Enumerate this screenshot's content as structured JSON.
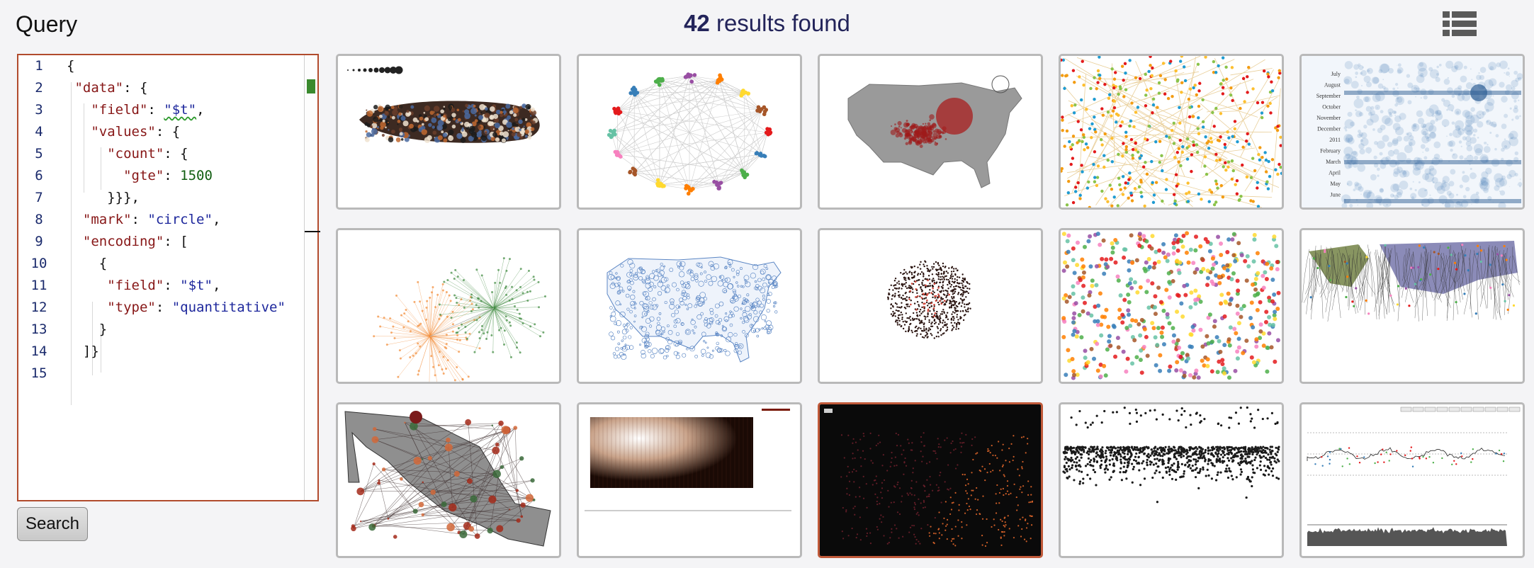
{
  "query_panel": {
    "title": "Query",
    "search_button_label": "Search"
  },
  "results": {
    "count": "42",
    "label": "results found"
  },
  "view_toggle": {
    "list_icon": "list-view-icon",
    "grid_icon": "grid-view-icon",
    "active": "grid",
    "active_color": "#1f3f92",
    "inactive_color": "#5a5a5a"
  },
  "editor": {
    "line_numbers": [
      "1",
      "2",
      "3",
      "4",
      "5",
      "6",
      "7",
      "8",
      "9",
      "10",
      "11",
      "12",
      "13",
      "14",
      "15"
    ],
    "lines": [
      [
        [
          "p",
          "{"
        ]
      ],
      [
        [
          "p",
          " "
        ],
        [
          "k",
          "\"data\""
        ],
        [
          "p",
          ": {"
        ]
      ],
      [
        [
          "p",
          "   "
        ],
        [
          "k",
          "\"field\""
        ],
        [
          "p",
          ": "
        ],
        [
          "s",
          "\"$t\""
        ],
        [
          "p",
          ","
        ]
      ],
      [
        [
          "p",
          "   "
        ],
        [
          "k",
          "\"values\""
        ],
        [
          "p",
          ": {"
        ]
      ],
      [
        [
          "p",
          "     "
        ],
        [
          "k",
          "\"count\""
        ],
        [
          "p",
          ": {"
        ]
      ],
      [
        [
          "p",
          "       "
        ],
        [
          "k",
          "\"gte\""
        ],
        [
          "p",
          ": "
        ],
        [
          "n",
          "1500"
        ]
      ],
      [
        [
          "p",
          "     }}},"
        ]
      ],
      [
        [
          "p",
          "  "
        ],
        [
          "k",
          "\"mark\""
        ],
        [
          "p",
          ": "
        ],
        [
          "s",
          "\"circle\""
        ],
        [
          "p",
          ","
        ]
      ],
      [
        [
          "p",
          "  "
        ],
        [
          "k",
          "\"encoding\""
        ],
        [
          "p",
          ": ["
        ]
      ],
      [
        [
          "p",
          "    {"
        ]
      ],
      [
        [
          "p",
          "     "
        ],
        [
          "k",
          "\"field\""
        ],
        [
          "p",
          ": "
        ],
        [
          "s",
          "\"$t\""
        ],
        [
          "p",
          ","
        ]
      ],
      [
        [
          "p",
          "     "
        ],
        [
          "k",
          "\"type\""
        ],
        [
          "p",
          ": "
        ],
        [
          "s",
          "\"quantitative\""
        ]
      ],
      [
        [
          "p",
          "    }"
        ]
      ],
      [
        [
          "p",
          "  ]}"
        ]
      ],
      []
    ]
  },
  "thumbnails": {
    "month_labels": [
      "July",
      "August",
      "September",
      "October",
      "November",
      "December",
      "2011",
      "February",
      "March",
      "April",
      "May",
      "June"
    ],
    "items": [
      "bubble-cluster-chart",
      "network-clusters-chart",
      "us-map-circles-chart",
      "colored-dots-network-chart",
      "timeline-bubbles-chart",
      "radial-network-chart",
      "us-counties-circles-map",
      "dense-scatter-cluster-chart",
      "multicolor-dots-chart",
      "world-map-flows-chart",
      "mexico-map-network",
      "gradient-heatmap-chart",
      "dark-us-map-chart",
      "black-dots-scatter-chart",
      "annotated-timeseries-chart"
    ]
  }
}
